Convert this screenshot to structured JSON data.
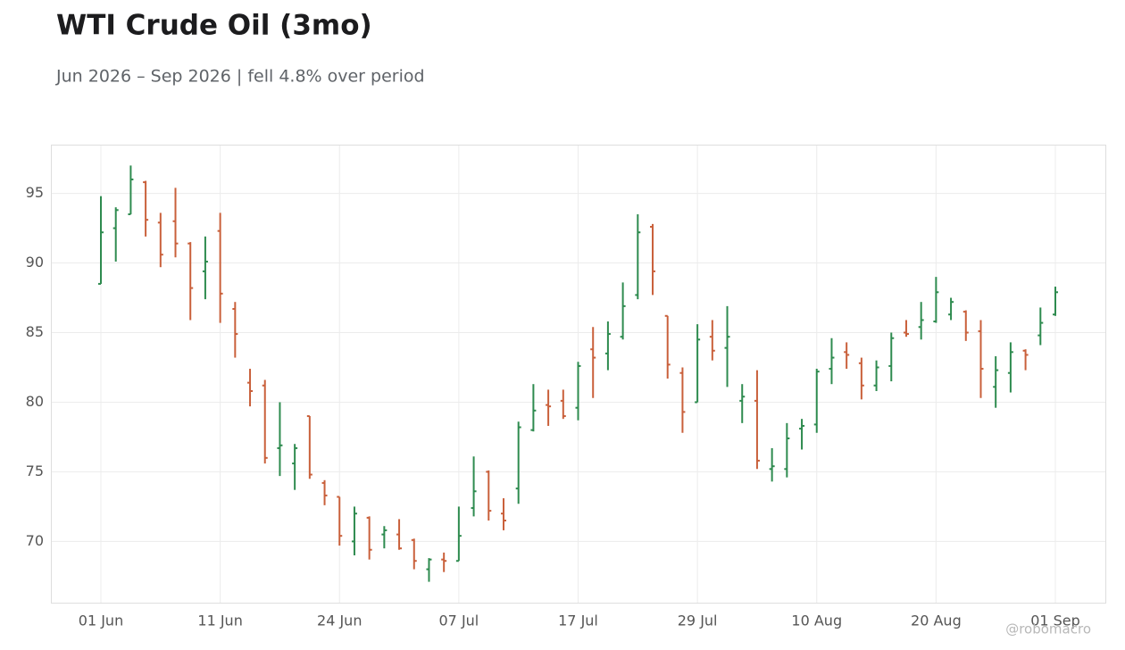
{
  "chart_data": {
    "type": "ohlc",
    "title": "WTI Crude Oil (3mo)",
    "subtitle": "Jun 2026 – Sep 2026 | fell 4.8% over period",
    "watermark": "@robomacro",
    "categories": [
      "01 Jun",
      null,
      null,
      null,
      null,
      null,
      null,
      null,
      "11 Jun",
      null,
      null,
      null,
      null,
      null,
      null,
      null,
      "24 Jun",
      null,
      null,
      null,
      null,
      null,
      null,
      null,
      "07 Jul",
      null,
      null,
      null,
      null,
      null,
      null,
      null,
      "17 Jul",
      null,
      null,
      null,
      null,
      null,
      null,
      null,
      "29 Jul",
      null,
      null,
      null,
      null,
      null,
      null,
      null,
      "10 Aug",
      null,
      null,
      null,
      null,
      null,
      null,
      null,
      "20 Aug",
      null,
      null,
      null,
      null,
      null,
      null,
      null,
      "01 Sep"
    ],
    "open": [
      88.5,
      92.5,
      93.5,
      95.8,
      92.9,
      93.0,
      91.4,
      89.4,
      92.3,
      86.7,
      81.4,
      81.2,
      76.7,
      75.6,
      79.0,
      74.2,
      73.2,
      70.0,
      71.7,
      70.5,
      70.5,
      70.1,
      68.0,
      68.7,
      68.6,
      72.4,
      75.0,
      72.0,
      73.8,
      78.0,
      79.8,
      80.1,
      79.6,
      83.8,
      83.5,
      84.7,
      87.7,
      92.6,
      86.2,
      82.1,
      80.0,
      84.7,
      83.9,
      80.1,
      80.1,
      75.2,
      75.2,
      78.1,
      78.4,
      82.4,
      83.6,
      82.8,
      81.2,
      82.6,
      85.0,
      85.4,
      85.8,
      86.3,
      86.5,
      85.1,
      81.1,
      82.1,
      83.7,
      84.8,
      86.3
    ],
    "high": [
      94.8,
      94.0,
      97.0,
      95.9,
      93.6,
      95.4,
      91.5,
      91.9,
      93.6,
      87.2,
      82.4,
      81.6,
      80.0,
      77.0,
      79.0,
      74.4,
      73.2,
      72.5,
      71.8,
      71.1,
      71.6,
      70.2,
      68.8,
      69.2,
      72.5,
      76.1,
      75.1,
      73.1,
      78.6,
      81.3,
      80.9,
      80.9,
      82.9,
      85.4,
      85.8,
      88.6,
      93.5,
      92.8,
      86.2,
      82.5,
      85.6,
      85.9,
      86.9,
      81.3,
      82.3,
      76.7,
      78.5,
      78.8,
      82.4,
      84.6,
      84.3,
      83.2,
      83.0,
      85.0,
      85.9,
      87.2,
      89.0,
      87.5,
      86.6,
      85.9,
      83.3,
      84.3,
      83.8,
      86.8,
      88.3
    ],
    "low": [
      88.5,
      90.1,
      93.5,
      91.9,
      89.7,
      90.4,
      85.9,
      87.4,
      85.7,
      83.2,
      79.7,
      75.6,
      74.7,
      73.7,
      74.5,
      72.6,
      69.7,
      69.0,
      68.7,
      69.5,
      69.4,
      68.0,
      67.1,
      67.8,
      68.6,
      71.8,
      71.5,
      70.8,
      72.7,
      77.9,
      78.3,
      78.8,
      78.7,
      80.3,
      82.3,
      84.5,
      87.4,
      87.7,
      81.7,
      77.8,
      80.0,
      83.0,
      81.1,
      78.5,
      75.2,
      74.3,
      74.6,
      76.6,
      77.8,
      81.3,
      82.4,
      80.2,
      80.8,
      81.5,
      84.7,
      84.5,
      85.7,
      85.9,
      84.4,
      80.3,
      79.6,
      80.7,
      82.3,
      84.1,
      86.2
    ],
    "close": [
      92.2,
      93.8,
      96.0,
      93.1,
      90.6,
      91.4,
      88.2,
      90.1,
      87.8,
      84.9,
      80.8,
      76.0,
      76.9,
      76.7,
      74.8,
      73.3,
      70.4,
      72.0,
      69.4,
      70.8,
      69.5,
      68.6,
      68.7,
      68.6,
      70.4,
      73.6,
      72.2,
      71.5,
      78.2,
      79.4,
      79.7,
      79.0,
      82.6,
      83.2,
      84.9,
      86.9,
      92.2,
      89.4,
      82.7,
      79.3,
      84.5,
      83.7,
      84.7,
      80.4,
      75.8,
      75.4,
      77.4,
      78.3,
      82.2,
      83.2,
      83.4,
      81.2,
      82.5,
      84.6,
      84.9,
      85.9,
      87.9,
      87.2,
      85.0,
      82.4,
      82.3,
      83.6,
      83.4,
      85.7,
      87.9
    ],
    "up_color": "#2e8b4f",
    "down_color": "#c9603b",
    "ylim": [
      65.6,
      98.5
    ],
    "yticks": [
      70,
      75,
      80,
      85,
      90,
      95
    ],
    "grid": true
  }
}
